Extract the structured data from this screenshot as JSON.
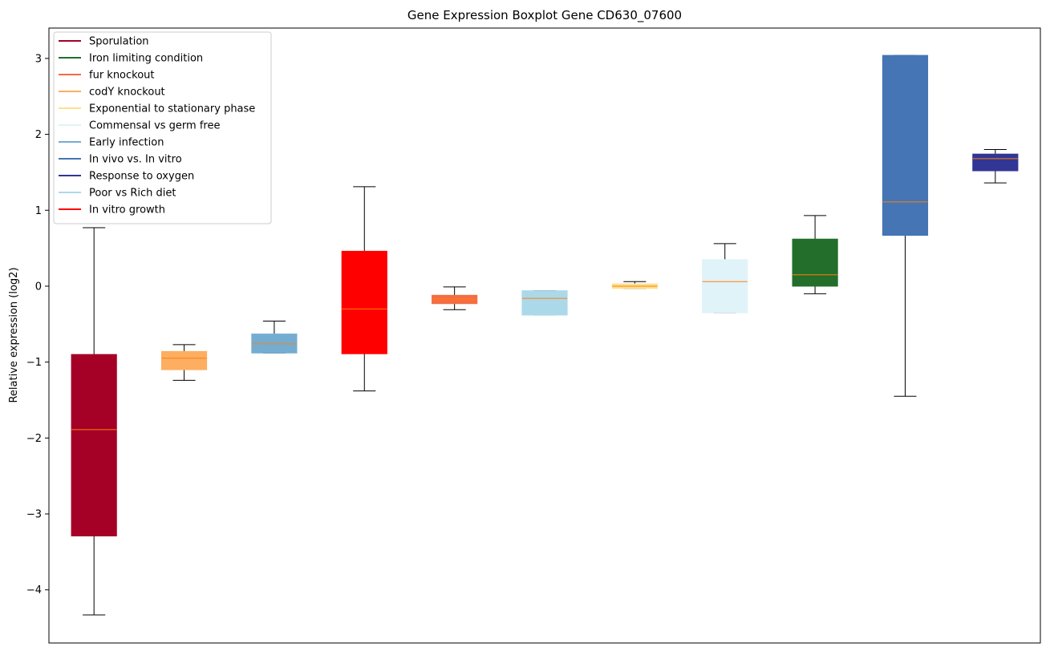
{
  "chart_data": {
    "type": "boxplot",
    "title": "Gene Expression Boxplot Gene CD630_07600",
    "xlabel": "",
    "ylabel": "Relative expression (log2)",
    "ylim": [
      -4.7,
      3.4
    ],
    "yticks": [
      -4,
      -3,
      -2,
      -1,
      0,
      1,
      2,
      3
    ],
    "ytick_labels": [
      "−4",
      "−3",
      "−2",
      "−1",
      "0",
      "1",
      "2",
      "3"
    ],
    "legend_position": "top-left",
    "median_color": "#ff7f0e",
    "series": [
      {
        "name": "Sporulation",
        "color": "#a50026",
        "whisker_low": -4.33,
        "q1": -3.29,
        "median": -1.89,
        "q3": -0.9,
        "whisker_high": 0.77
      },
      {
        "name": "codY knockout",
        "color": "#fdae61",
        "whisker_low": -1.24,
        "q1": -1.1,
        "median": -0.95,
        "q3": -0.86,
        "whisker_high": -0.77
      },
      {
        "name": "Early infection",
        "color": "#74add1",
        "whisker_low": -0.88,
        "q1": -0.88,
        "median": -0.76,
        "q3": -0.63,
        "whisker_high": -0.46
      },
      {
        "name": "In vitro growth",
        "color": "#ff0000",
        "whisker_low": -1.38,
        "q1": -0.89,
        "median": -0.3,
        "q3": 0.46,
        "whisker_high": 1.31
      },
      {
        "name": "fur knockout",
        "color": "#f46d43",
        "whisker_low": -0.31,
        "q1": -0.23,
        "median": -0.17,
        "q3": -0.12,
        "whisker_high": -0.01
      },
      {
        "name": "Poor vs Rich diet",
        "color": "#abd9e9",
        "whisker_low": -0.38,
        "q1": -0.38,
        "median": -0.16,
        "q3": -0.06,
        "whisker_high": -0.06
      },
      {
        "name": "Exponential to stationary phase",
        "color": "#fee090",
        "whisker_low": -0.03,
        "q1": -0.03,
        "median": 0.0,
        "q3": 0.03,
        "whisker_high": 0.06
      },
      {
        "name": "Commensal vs germ free",
        "color": "#e0f3f8",
        "whisker_low": -0.35,
        "q1": -0.35,
        "median": 0.06,
        "q3": 0.35,
        "whisker_high": 0.56
      },
      {
        "name": "Iron limiting condition",
        "color": "#226e2a",
        "whisker_low": -0.1,
        "q1": 0.0,
        "median": 0.15,
        "q3": 0.62,
        "whisker_high": 0.93
      },
      {
        "name": "In vivo vs. In vitro",
        "color": "#4575b4",
        "whisker_low": -1.45,
        "q1": 0.67,
        "median": 1.11,
        "q3": 3.04,
        "whisker_high": 3.04
      },
      {
        "name": "Response to oxygen",
        "color": "#313695",
        "whisker_low": 1.36,
        "q1": 1.52,
        "median": 1.68,
        "q3": 1.74,
        "whisker_high": 1.8
      }
    ],
    "legend": [
      {
        "label": "Sporulation",
        "color": "#a50026"
      },
      {
        "label": "Iron limiting condition",
        "color": "#226e2a"
      },
      {
        "label": "fur knockout",
        "color": "#f46d43"
      },
      {
        "label": "codY knockout",
        "color": "#fdae61"
      },
      {
        "label": "Exponential to stationary phase",
        "color": "#fee090"
      },
      {
        "label": "Commensal vs germ free",
        "color": "#e0f3f8"
      },
      {
        "label": "Early infection",
        "color": "#74add1"
      },
      {
        "label": "In vivo vs. In vitro",
        "color": "#4575b4"
      },
      {
        "label": "Response to oxygen",
        "color": "#313695"
      },
      {
        "label": "Poor vs Rich diet",
        "color": "#abd9e9"
      },
      {
        "label": "In vitro growth",
        "color": "#ff0000"
      }
    ]
  }
}
